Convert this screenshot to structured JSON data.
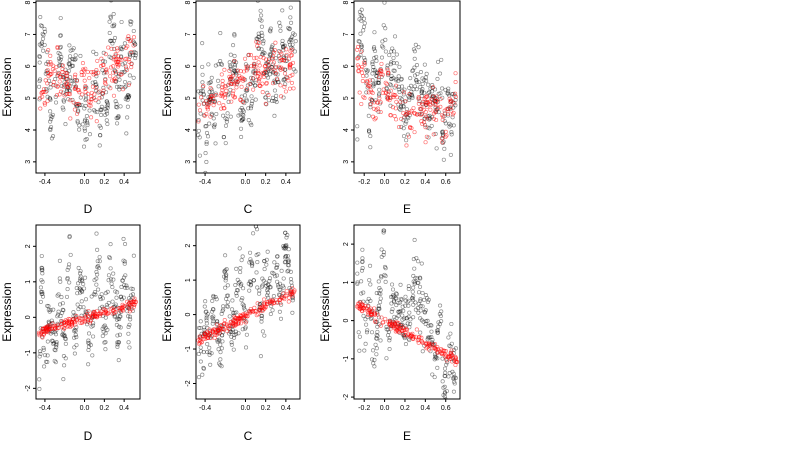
{
  "figure": {
    "background": "#ffffff"
  },
  "chart_data": [
    {
      "type": "scatter",
      "xlabel": "D",
      "ylabel": "Expression",
      "xlim": [
        -0.49,
        0.56
      ],
      "ylim": [
        2.65,
        8.05
      ],
      "xticks": [
        -0.4,
        0.0,
        0.2,
        0.4
      ],
      "xtick_labels": [
        "-0.4",
        "0.0",
        "0.2",
        "0.4"
      ],
      "yticks": [
        3,
        4,
        5,
        6,
        7,
        8
      ],
      "ytick_labels": [
        "3",
        "4",
        "5",
        "6",
        "7",
        "8"
      ],
      "series": [
        {
          "role": "observed",
          "color": "#000000",
          "marker": "open-circle",
          "n_points": 300,
          "x": [
            -0.46,
            -0.45,
            -0.43,
            -0.39,
            -0.33,
            -0.3,
            -0.25,
            -0.2,
            -0.16,
            -0.1,
            -0.06,
            -0.04,
            -0.01,
            0.02,
            0.06,
            0.08,
            0.1,
            0.12,
            0.15,
            0.19,
            0.23,
            0.26,
            0.3,
            0.33,
            0.36,
            0.4,
            0.43,
            0.47,
            0.52
          ],
          "y": [
            3.8,
            7.3,
            6.9,
            6.2,
            3.9,
            5.2,
            6.6,
            4.6,
            5.8,
            6.3,
            3.7,
            5.4,
            3.9,
            5.0,
            3.3,
            6.4,
            4.4,
            5.8,
            3.9,
            6.1,
            4.5,
            7.1,
            6.7,
            4.7,
            5.8,
            6.5,
            4.4,
            7.0,
            6.5
          ]
        },
        {
          "role": "fitted",
          "color": "#ff0000",
          "marker": "open-circle",
          "n_points": 180,
          "x": [
            -0.45,
            -0.35,
            -0.2,
            -0.1,
            0.0,
            0.05,
            0.1,
            0.2,
            0.3,
            0.4,
            0.5
          ],
          "y": [
            4.6,
            5.9,
            5.5,
            5.1,
            5.5,
            5.0,
            5.3,
            5.6,
            6.0,
            6.1,
            6.7
          ]
        }
      ]
    },
    {
      "type": "scatter",
      "xlabel": "C",
      "ylabel": "Expression",
      "xlim": [
        -0.49,
        0.54
      ],
      "ylim": [
        2.65,
        8.05
      ],
      "xticks": [
        -0.4,
        0.0,
        0.2,
        0.4
      ],
      "xtick_labels": [
        "-0.4",
        "0.0",
        "0.2",
        "0.4"
      ],
      "yticks": [
        3,
        4,
        5,
        6,
        7,
        8
      ],
      "ytick_labels": [
        "3",
        "4",
        "5",
        "6",
        "7",
        "8"
      ],
      "series": [
        {
          "role": "observed",
          "color": "#000000",
          "marker": "open-circle",
          "n_points": 300,
          "x": [
            -0.47,
            -0.45,
            -0.43,
            -0.4,
            -0.35,
            -0.3,
            -0.25,
            -0.2,
            -0.15,
            -0.1,
            -0.05,
            0.0,
            0.05,
            0.1,
            0.15,
            0.2,
            0.25,
            0.3,
            0.35,
            0.4,
            0.45,
            0.48,
            0.5
          ],
          "y": [
            4.8,
            3.9,
            6.0,
            3.4,
            5.2,
            4.2,
            6.4,
            3.7,
            5.3,
            6.0,
            3.9,
            5.6,
            4.8,
            6.3,
            7.8,
            5.4,
            6.5,
            5.1,
            6.9,
            5.8,
            7.2,
            6.6,
            6.2
          ]
        },
        {
          "role": "fitted",
          "color": "#ff0000",
          "marker": "open-circle",
          "n_points": 180,
          "x": [
            -0.47,
            -0.4,
            -0.3,
            -0.2,
            -0.1,
            0.0,
            0.1,
            0.2,
            0.3,
            0.4,
            0.48
          ],
          "y": [
            4.6,
            4.9,
            5.0,
            5.2,
            5.4,
            5.7,
            5.8,
            5.9,
            6.1,
            6.0,
            6.1
          ]
        }
      ]
    },
    {
      "type": "scatter",
      "xlabel": "E",
      "ylabel": "Expression",
      "xlim": [
        -0.3,
        0.74
      ],
      "ylim": [
        2.65,
        8.05
      ],
      "xticks": [
        -0.2,
        0.0,
        0.2,
        0.4,
        0.6
      ],
      "xtick_labels": [
        "-0.2",
        "0.0",
        "0.2",
        "0.4",
        "0.6"
      ],
      "yticks": [
        3,
        4,
        5,
        6,
        7,
        8
      ],
      "ytick_labels": [
        "3",
        "4",
        "5",
        "6",
        "7",
        "8"
      ],
      "series": [
        {
          "role": "observed",
          "color": "#000000",
          "marker": "open-circle",
          "n_points": 300,
          "x": [
            -0.27,
            -0.25,
            -0.2,
            -0.15,
            -0.1,
            -0.05,
            0.0,
            0.02,
            0.1,
            0.2,
            0.3,
            0.4,
            0.5,
            0.55,
            0.58,
            0.6,
            0.65,
            0.7
          ],
          "y": [
            3.3,
            7.4,
            6.8,
            4.0,
            6.2,
            5.0,
            7.8,
            5.5,
            5.9,
            4.3,
            5.8,
            4.9,
            4.4,
            5.8,
            3.4,
            5.0,
            4.3,
            4.9
          ]
        },
        {
          "role": "fitted",
          "color": "#ff0000",
          "marker": "open-circle",
          "n_points": 180,
          "x": [
            -0.27,
            -0.2,
            -0.1,
            0.0,
            0.1,
            0.2,
            0.3,
            0.4,
            0.5,
            0.6,
            0.7
          ],
          "y": [
            6.3,
            5.6,
            4.9,
            5.5,
            4.6,
            4.3,
            4.4,
            4.6,
            4.8,
            4.2,
            5.0
          ]
        }
      ]
    },
    {
      "type": "scatter",
      "xlabel": "D",
      "ylabel": "Expression",
      "xlim": [
        -0.49,
        0.56
      ],
      "ylim": [
        -2.3,
        2.6
      ],
      "xticks": [
        -0.4,
        0.0,
        0.2,
        0.4
      ],
      "xtick_labels": [
        "-0.4",
        "0.0",
        "0.2",
        "0.4"
      ],
      "yticks": [
        -2,
        -1,
        0,
        1,
        2
      ],
      "ytick_labels": [
        "-2",
        "-1",
        "0",
        "1",
        "2"
      ],
      "series": [
        {
          "role": "observed",
          "color": "#000000",
          "marker": "open-circle",
          "n_points": 300,
          "x": [
            -0.46,
            -0.43,
            -0.4,
            -0.35,
            -0.3,
            -0.25,
            -0.2,
            -0.15,
            -0.1,
            -0.05,
            0.0,
            0.05,
            0.1,
            0.15,
            0.2,
            0.25,
            0.3,
            0.35,
            0.4,
            0.45,
            0.5
          ],
          "y": [
            -1.9,
            1.1,
            -1.6,
            0.3,
            -0.9,
            1.0,
            -1.3,
            2.2,
            -0.5,
            0.9,
            1.1,
            -1.0,
            0.7,
            1.8,
            -0.8,
            1.6,
            0.2,
            -0.6,
            1.3,
            -0.2,
            0.9
          ]
        },
        {
          "role": "fitted",
          "color": "#ff0000",
          "marker": "open-circle",
          "n_points": 180,
          "x": [
            -0.46,
            -0.35,
            -0.25,
            -0.15,
            -0.05,
            0.05,
            0.15,
            0.25,
            0.35,
            0.45,
            0.52
          ],
          "y": [
            -0.42,
            -0.33,
            -0.25,
            -0.17,
            -0.08,
            0.0,
            0.08,
            0.17,
            0.25,
            0.33,
            0.4
          ]
        }
      ]
    },
    {
      "type": "scatter",
      "xlabel": "C",
      "ylabel": "Expression",
      "xlim": [
        -0.49,
        0.54
      ],
      "ylim": [
        -2.45,
        2.6
      ],
      "xticks": [
        -0.4,
        0.0,
        0.2,
        0.4
      ],
      "xtick_labels": [
        "-0.4",
        "0.0",
        "0.2",
        "0.4"
      ],
      "yticks": [
        -2,
        -1,
        0,
        1,
        2
      ],
      "ytick_labels": [
        "-2",
        "-1",
        "0",
        "1",
        "2"
      ],
      "series": [
        {
          "role": "observed",
          "color": "#000000",
          "marker": "open-circle",
          "n_points": 300,
          "x": [
            -0.47,
            -0.45,
            -0.42,
            -0.4,
            -0.35,
            -0.3,
            -0.25,
            -0.2,
            -0.15,
            -0.1,
            -0.05,
            0.0,
            0.05,
            0.1,
            0.15,
            0.2,
            0.25,
            0.3,
            0.35,
            0.4,
            0.45,
            0.48
          ],
          "y": [
            -1.8,
            -0.3,
            -2.3,
            0.4,
            -1.0,
            0.6,
            -1.5,
            1.0,
            -0.6,
            0.2,
            1.2,
            -0.4,
            0.8,
            2.4,
            -0.2,
            1.3,
            0.5,
            1.6,
            0.0,
            2.1,
            0.9,
            -0.6
          ]
        },
        {
          "role": "fitted",
          "color": "#ff0000",
          "marker": "open-circle",
          "n_points": 180,
          "x": [
            -0.47,
            -0.37,
            -0.27,
            -0.17,
            -0.07,
            0.03,
            0.13,
            0.23,
            0.33,
            0.43,
            0.49
          ],
          "y": [
            -0.72,
            -0.58,
            -0.43,
            -0.29,
            -0.14,
            0.0,
            0.15,
            0.29,
            0.44,
            0.58,
            0.72
          ]
        }
      ]
    },
    {
      "type": "scatter",
      "xlabel": "E",
      "ylabel": "Expression",
      "xlim": [
        -0.3,
        0.74
      ],
      "ylim": [
        -2.05,
        2.5
      ],
      "xticks": [
        -0.2,
        0.0,
        0.2,
        0.4,
        0.6
      ],
      "xtick_labels": [
        "-0.2",
        "0.0",
        "0.2",
        "0.4",
        "0.6"
      ],
      "yticks": [
        -2,
        -1,
        0,
        1,
        2
      ],
      "ytick_labels": [
        "-2",
        "-1",
        "0",
        "1",
        "2"
      ],
      "series": [
        {
          "role": "observed",
          "color": "#000000",
          "marker": "open-circle",
          "n_points": 300,
          "x": [
            -0.27,
            -0.25,
            -0.22,
            -0.2,
            -0.15,
            -0.1,
            -0.05,
            0.0,
            0.02,
            0.1,
            0.2,
            0.3,
            0.4,
            0.5,
            0.55,
            0.58,
            0.6,
            0.65,
            0.7
          ],
          "y": [
            1.9,
            -1.0,
            1.6,
            -0.4,
            0.9,
            -1.2,
            0.5,
            2.3,
            -0.6,
            0.6,
            -0.2,
            1.1,
            0.2,
            -0.9,
            0.4,
            -1.8,
            -1.3,
            -0.6,
            -1.6
          ]
        },
        {
          "role": "fitted",
          "color": "#ff0000",
          "marker": "open-circle",
          "n_points": 180,
          "x": [
            -0.27,
            -0.2,
            -0.1,
            0.0,
            0.1,
            0.2,
            0.3,
            0.4,
            0.5,
            0.6,
            0.72
          ],
          "y": [
            0.4,
            0.3,
            0.15,
            0.0,
            -0.15,
            -0.3,
            -0.45,
            -0.6,
            -0.75,
            -0.88,
            -1.05
          ]
        }
      ]
    }
  ]
}
